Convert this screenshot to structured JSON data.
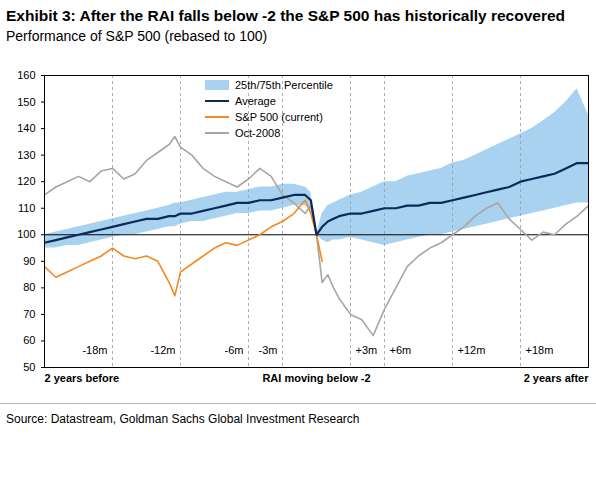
{
  "chart_data": {
    "type": "line",
    "title": "Exhibit 3: After the RAI falls below -2 the S&P 500 has historically recovered",
    "subtitle": "Performance of S&P 500 (rebased to 100)",
    "source": "Source: Datastream, Goldman Sachs Global Investment Research",
    "x": [
      -24,
      -23,
      -22,
      -21,
      -20,
      -19,
      -18,
      -17,
      -16,
      -15,
      -14,
      -13,
      -12.5,
      -12,
      -11,
      -10,
      -9,
      -8,
      -7,
      -6,
      -5,
      -4,
      -3,
      -2,
      -1,
      -0.5,
      0,
      0.5,
      1,
      1.5,
      2,
      3,
      4,
      5,
      6,
      7,
      8,
      9,
      10,
      11,
      12,
      13,
      14,
      15,
      16,
      17,
      18,
      19,
      20,
      21,
      22,
      23,
      24
    ],
    "xlim": [
      -24,
      24
    ],
    "xticks": [
      {
        "value": -24,
        "label": "2 years before"
      },
      {
        "value": 0,
        "label": "RAI moving below -2"
      },
      {
        "value": 24,
        "label": "2 years after"
      }
    ],
    "ylim": [
      50,
      160
    ],
    "yticks": [
      50,
      60,
      70,
      80,
      90,
      100,
      110,
      120,
      130,
      140,
      150,
      160
    ],
    "reference_y": 100,
    "period_markers": [
      {
        "x": -18,
        "label": "-18m"
      },
      {
        "x": -12,
        "label": "-12m"
      },
      {
        "x": -6,
        "label": "-6m"
      },
      {
        "x": -3,
        "label": "-3m"
      },
      {
        "x": 3,
        "label": "+3m"
      },
      {
        "x": 6,
        "label": "+6m"
      },
      {
        "x": 12,
        "label": "+12m"
      },
      {
        "x": 18,
        "label": "+18m"
      }
    ],
    "legend": "top",
    "series": [
      {
        "name": "25th/75th Percentile",
        "type": "area",
        "color": "#a9d2f0",
        "lower": [
          95,
          95,
          96,
          96,
          97,
          98,
          99,
          100,
          100,
          101,
          102,
          103,
          103,
          104,
          105,
          105,
          106,
          107,
          108,
          108,
          109,
          109,
          110,
          111,
          111,
          109,
          100,
          98,
          97,
          98,
          98,
          99,
          98,
          97,
          96,
          97,
          98,
          99,
          100,
          100,
          101,
          102,
          103,
          104,
          105,
          106,
          107,
          108,
          109,
          110,
          111,
          112,
          112
        ],
        "upper": [
          100,
          101,
          102,
          103,
          104,
          105,
          106,
          107,
          108,
          109,
          110,
          111,
          112,
          112,
          113,
          114,
          115,
          116,
          116,
          117,
          118,
          118,
          119,
          119,
          118,
          116,
          100,
          108,
          111,
          112,
          113,
          115,
          116,
          118,
          120,
          120,
          122,
          123,
          124,
          125,
          127,
          128,
          130,
          132,
          134,
          136,
          138,
          140,
          143,
          146,
          150,
          155,
          145
        ]
      },
      {
        "name": "Average",
        "type": "line",
        "color": "#0b2a57",
        "values": [
          97,
          98,
          99,
          100,
          101,
          102,
          103,
          104,
          105,
          106,
          106,
          107,
          107,
          108,
          108,
          109,
          110,
          111,
          112,
          112,
          113,
          113,
          114,
          115,
          115,
          113,
          100,
          103,
          105,
          106,
          107,
          108,
          108,
          109,
          110,
          110,
          111,
          111,
          112,
          112,
          113,
          114,
          115,
          116,
          117,
          118,
          120,
          121,
          122,
          123,
          125,
          127,
          127
        ]
      },
      {
        "name": "S&P 500 (current)",
        "type": "line",
        "color": "#f28a22",
        "values": [
          88,
          84,
          86,
          88,
          90,
          92,
          95,
          92,
          91,
          92,
          90,
          82,
          77,
          86,
          89,
          92,
          95,
          97,
          96,
          98,
          100,
          103,
          105,
          108,
          113,
          108,
          100,
          90,
          null,
          null,
          null,
          null,
          null,
          null,
          null,
          null,
          null,
          null,
          null,
          null,
          null,
          null,
          null,
          null,
          null,
          null,
          null,
          null,
          null,
          null,
          null,
          null,
          null
        ]
      },
      {
        "name": "Oct-2008",
        "type": "line",
        "color": "#a6a6a6",
        "values": [
          115,
          118,
          120,
          122,
          120,
          124,
          125,
          121,
          123,
          128,
          131,
          134,
          137,
          133,
          130,
          125,
          122,
          120,
          118,
          121,
          125,
          122,
          115,
          112,
          108,
          111,
          100,
          82,
          85,
          80,
          76,
          70,
          68,
          62,
          72,
          80,
          88,
          92,
          95,
          97,
          100,
          103,
          107,
          110,
          112,
          106,
          102,
          98,
          101,
          100,
          104,
          107,
          111
        ]
      }
    ]
  }
}
